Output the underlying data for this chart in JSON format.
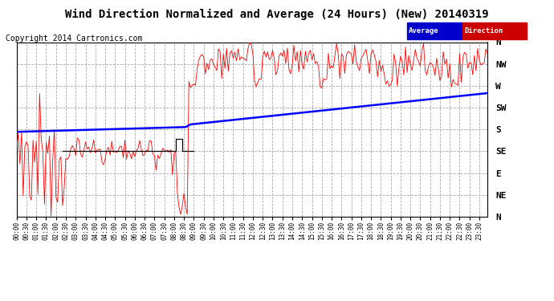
{
  "title": "Wind Direction Normalized and Average (24 Hours) (New) 20140319",
  "copyright": "Copyright 2014 Cartronics.com",
  "y_labels": [
    "N",
    "NW",
    "W",
    "SW",
    "S",
    "SE",
    "E",
    "NE",
    "N"
  ],
  "y_values": [
    360,
    315,
    270,
    225,
    180,
    135,
    90,
    45,
    0
  ],
  "bg_color": "#ffffff",
  "plot_bg_color": "#ffffff",
  "grid_color": "#aaaaaa",
  "title_fontsize": 10,
  "copyright_fontsize": 7,
  "avg_color": "#0000ff",
  "dir_color": "#ff0000",
  "black_color": "#000000"
}
